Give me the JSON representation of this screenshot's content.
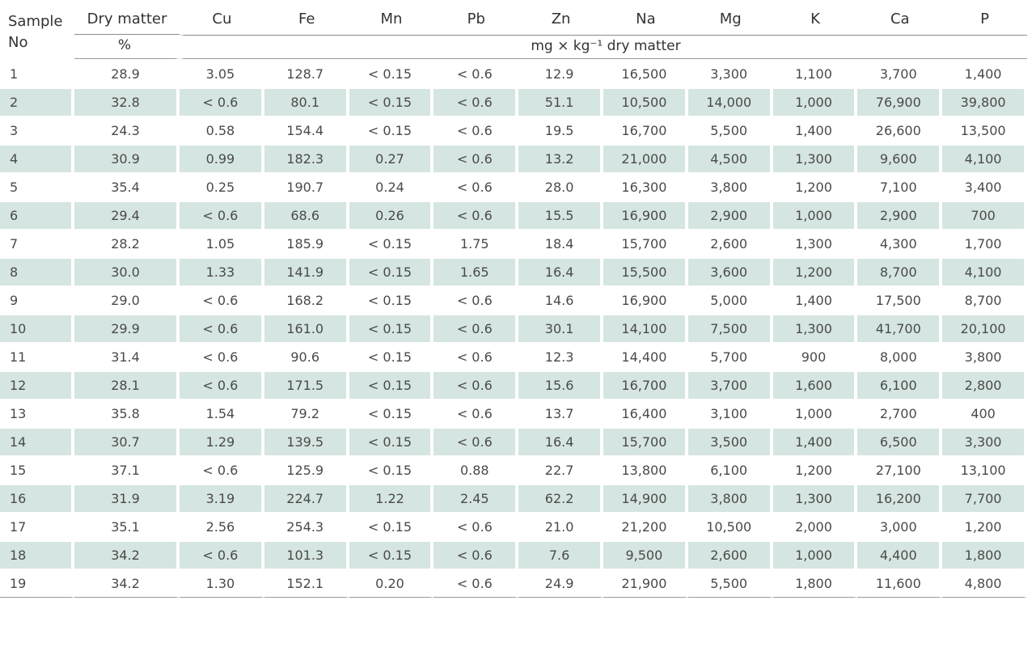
{
  "table": {
    "headers": {
      "sample_line1": "Sample",
      "sample_line2": "No",
      "dry_matter": "Dry matter",
      "dry_matter_unit": "%",
      "elements": [
        "Cu",
        "Fe",
        "Mn",
        "Pb",
        "Zn",
        "Na",
        "Mg",
        "K",
        "Ca",
        "P"
      ],
      "element_unit": "mg × kg⁻¹ dry matter"
    },
    "rows": [
      [
        "1",
        "28.9",
        "3.05",
        "128.7",
        "< 0.15",
        "< 0.6",
        "12.9",
        "16,500",
        "3,300",
        "1,100",
        "3,700",
        "1,400"
      ],
      [
        "2",
        "32.8",
        "< 0.6",
        "80.1",
        "< 0.15",
        "< 0.6",
        "51.1",
        "10,500",
        "14,000",
        "1,000",
        "76,900",
        "39,800"
      ],
      [
        "3",
        "24.3",
        "0.58",
        "154.4",
        "< 0.15",
        "< 0.6",
        "19.5",
        "16,700",
        "5,500",
        "1,400",
        "26,600",
        "13,500"
      ],
      [
        "4",
        "30.9",
        "0.99",
        "182.3",
        "0.27",
        "< 0.6",
        "13.2",
        "21,000",
        "4,500",
        "1,300",
        "9,600",
        "4,100"
      ],
      [
        "5",
        "35.4",
        "0.25",
        "190.7",
        "0.24",
        "< 0.6",
        "28.0",
        "16,300",
        "3,800",
        "1,200",
        "7,100",
        "3,400"
      ],
      [
        "6",
        "29.4",
        "< 0.6",
        "68.6",
        "0.26",
        "< 0.6",
        "15.5",
        "16,900",
        "2,900",
        "1,000",
        "2,900",
        "700"
      ],
      [
        "7",
        "28.2",
        "1.05",
        "185.9",
        "< 0.15",
        "1.75",
        "18.4",
        "15,700",
        "2,600",
        "1,300",
        "4,300",
        "1,700"
      ],
      [
        "8",
        "30.0",
        "1.33",
        "141.9",
        "< 0.15",
        "1.65",
        "16.4",
        "15,500",
        "3,600",
        "1,200",
        "8,700",
        "4,100"
      ],
      [
        "9",
        "29.0",
        "< 0.6",
        "168.2",
        "< 0.15",
        "< 0.6",
        "14.6",
        "16,900",
        "5,000",
        "1,400",
        "17,500",
        "8,700"
      ],
      [
        "10",
        "29.9",
        "< 0.6",
        "161.0",
        "< 0.15",
        "< 0.6",
        "30.1",
        "14,100",
        "7,500",
        "1,300",
        "41,700",
        "20,100"
      ],
      [
        "11",
        "31.4",
        "< 0.6",
        "90.6",
        "< 0.15",
        "< 0.6",
        "12.3",
        "14,400",
        "5,700",
        "900",
        "8,000",
        "3,800"
      ],
      [
        "12",
        "28.1",
        "< 0.6",
        "171.5",
        "< 0.15",
        "< 0.6",
        "15.6",
        "16,700",
        "3,700",
        "1,600",
        "6,100",
        "2,800"
      ],
      [
        "13",
        "35.8",
        "1.54",
        "79.2",
        "< 0.15",
        "< 0.6",
        "13.7",
        "16,400",
        "3,100",
        "1,000",
        "2,700",
        "400"
      ],
      [
        "14",
        "30.7",
        "1.29",
        "139.5",
        "< 0.15",
        "< 0.6",
        "16.4",
        "15,700",
        "3,500",
        "1,400",
        "6,500",
        "3,300"
      ],
      [
        "15",
        "37.1",
        "< 0.6",
        "125.9",
        "< 0.15",
        "0.88",
        "22.7",
        "13,800",
        "6,100",
        "1,200",
        "27,100",
        "13,100"
      ],
      [
        "16",
        "31.9",
        "3.19",
        "224.7",
        "1.22",
        "2.45",
        "62.2",
        "14,900",
        "3,800",
        "1,300",
        "16,200",
        "7,700"
      ],
      [
        "17",
        "35.1",
        "2.56",
        "254.3",
        "< 0.15",
        "< 0.6",
        "21.0",
        "21,200",
        "10,500",
        "2,000",
        "3,000",
        "1,200"
      ],
      [
        "18",
        "34.2",
        "< 0.6",
        "101.3",
        "< 0.15",
        "< 0.6",
        "7.6",
        "9,500",
        "2,600",
        "1,000",
        "4,400",
        "1,800"
      ],
      [
        "19",
        "34.2",
        "1.30",
        "152.1",
        "0.20",
        "< 0.6",
        "24.9",
        "21,900",
        "5,500",
        "1,800",
        "11,600",
        "4,800"
      ]
    ]
  },
  "colors": {
    "stripe": "#d5e5e1",
    "text": "#4a4a4a",
    "rule": "#9a9a9a"
  }
}
